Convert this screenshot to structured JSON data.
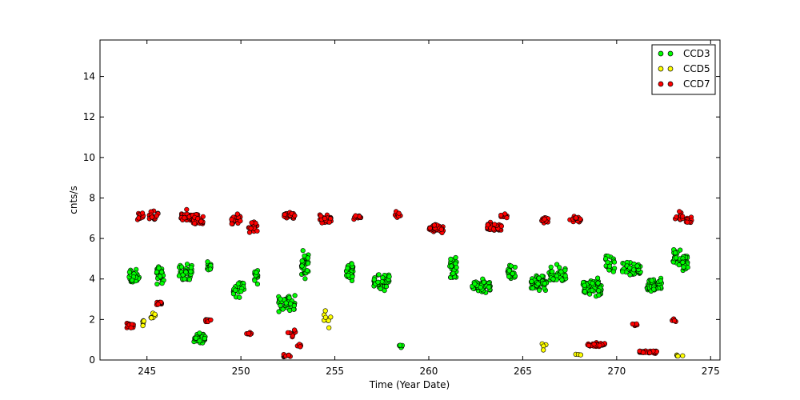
{
  "chart_data": {
    "type": "scatter",
    "title": "",
    "xlabel": "Time (Year Date)",
    "ylabel": "cnts/s",
    "xlim": [
      242.5,
      275.5
    ],
    "ylim": [
      0,
      15.8
    ],
    "xticks": [
      245,
      250,
      255,
      260,
      265,
      270,
      275
    ],
    "yticks": [
      0,
      2,
      4,
      6,
      8,
      10,
      12,
      14
    ],
    "legend_position": "top-right",
    "grid": false,
    "series": [
      {
        "name": "CCD3",
        "color": "#00ff00",
        "clusters": [
          {
            "x": [
              244.0,
              244.6
            ],
            "y": [
              3.6,
              4.6
            ],
            "n": 40
          },
          {
            "x": [
              245.5,
              245.9
            ],
            "y": [
              3.6,
              4.8
            ],
            "n": 30
          },
          {
            "x": [
              246.7,
              247.4
            ],
            "y": [
              3.8,
              4.9
            ],
            "n": 35
          },
          {
            "x": [
              247.5,
              248.1
            ],
            "y": [
              0.7,
              1.4
            ],
            "n": 45
          },
          {
            "x": [
              248.2,
              248.4
            ],
            "y": [
              4.1,
              5.0
            ],
            "n": 15
          },
          {
            "x": [
              249.6,
              250.2
            ],
            "y": [
              3.0,
              4.1
            ],
            "n": 35
          },
          {
            "x": [
              250.7,
              250.9
            ],
            "y": [
              3.6,
              4.8
            ],
            "n": 15
          },
          {
            "x": [
              252.0,
              252.9
            ],
            "y": [
              2.2,
              3.4
            ],
            "n": 45
          },
          {
            "x": [
              253.2,
              253.6
            ],
            "y": [
              3.9,
              5.6
            ],
            "n": 30
          },
          {
            "x": [
              255.6,
              256.0
            ],
            "y": [
              3.8,
              5.0
            ],
            "n": 35
          },
          {
            "x": [
              257.0,
              257.9
            ],
            "y": [
              3.3,
              4.4
            ],
            "n": 45
          },
          {
            "x": [
              258.4,
              258.6
            ],
            "y": [
              0.5,
              0.9
            ],
            "n": 8
          },
          {
            "x": [
              261.1,
              261.5
            ],
            "y": [
              3.9,
              5.2
            ],
            "n": 30
          },
          {
            "x": [
              262.3,
              263.3
            ],
            "y": [
              3.2,
              4.1
            ],
            "n": 55
          },
          {
            "x": [
              264.2,
              264.6
            ],
            "y": [
              3.8,
              4.8
            ],
            "n": 25
          },
          {
            "x": [
              265.4,
              266.3
            ],
            "y": [
              3.3,
              4.3
            ],
            "n": 50
          },
          {
            "x": [
              266.4,
              267.3
            ],
            "y": [
              3.6,
              4.8
            ],
            "n": 40
          },
          {
            "x": [
              268.2,
              269.2
            ],
            "y": [
              2.9,
              4.2
            ],
            "n": 60
          },
          {
            "x": [
              269.4,
              269.9
            ],
            "y": [
              4.0,
              5.3
            ],
            "n": 20
          },
          {
            "x": [
              270.3,
              271.3
            ],
            "y": [
              3.9,
              5.0
            ],
            "n": 50
          },
          {
            "x": [
              271.6,
              272.4
            ],
            "y": [
              3.2,
              4.2
            ],
            "n": 45
          },
          {
            "x": [
              273.0,
              273.4
            ],
            "y": [
              4.3,
              6.0
            ],
            "n": 20
          },
          {
            "x": [
              273.5,
              273.8
            ],
            "y": [
              4.2,
              5.4
            ],
            "n": 25
          }
        ]
      },
      {
        "name": "CCD5",
        "color": "#ffff00",
        "clusters": [
          {
            "x": [
              244.7,
              244.9
            ],
            "y": [
              1.5,
              2.2
            ],
            "n": 6
          },
          {
            "x": [
              245.2,
              245.5
            ],
            "y": [
              1.9,
              2.4
            ],
            "n": 6
          },
          {
            "x": [
              254.4,
              254.8
            ],
            "y": [
              1.4,
              2.6
            ],
            "n": 8
          },
          {
            "x": [
              266.0,
              266.3
            ],
            "y": [
              0.2,
              1.2
            ],
            "n": 4
          },
          {
            "x": [
              267.8,
              268.1
            ],
            "y": [
              0.2,
              0.3
            ],
            "n": 3
          },
          {
            "x": [
              273.2,
              273.6
            ],
            "y": [
              0.1,
              0.3
            ],
            "n": 4
          }
        ]
      },
      {
        "name": "CCD7",
        "color": "#ff0000",
        "clusters": [
          {
            "x": [
              243.9,
              244.3
            ],
            "y": [
              1.5,
              1.9
            ],
            "n": 20
          },
          {
            "x": [
              244.5,
              244.8
            ],
            "y": [
              6.8,
              7.4
            ],
            "n": 15
          },
          {
            "x": [
              245.1,
              245.6
            ],
            "y": [
              6.8,
              7.4
            ],
            "n": 18
          },
          {
            "x": [
              245.5,
              245.8
            ],
            "y": [
              2.6,
              3.0
            ],
            "n": 12
          },
          {
            "x": [
              246.8,
              247.4
            ],
            "y": [
              6.6,
              7.5
            ],
            "n": 30
          },
          {
            "x": [
              247.4,
              248.0
            ],
            "y": [
              6.5,
              7.4
            ],
            "n": 30
          },
          {
            "x": [
              248.1,
              248.4
            ],
            "y": [
              1.8,
              2.2
            ],
            "n": 8
          },
          {
            "x": [
              249.5,
              250.0
            ],
            "y": [
              6.6,
              7.3
            ],
            "n": 20
          },
          {
            "x": [
              250.4,
              250.9
            ],
            "y": [
              6.2,
              6.9
            ],
            "n": 18
          },
          {
            "x": [
              250.3,
              250.6
            ],
            "y": [
              1.2,
              1.4
            ],
            "n": 6
          },
          {
            "x": [
              252.2,
              252.7
            ],
            "y": [
              0.1,
              0.3
            ],
            "n": 10
          },
          {
            "x": [
              252.3,
              252.9
            ],
            "y": [
              6.9,
              7.4
            ],
            "n": 25
          },
          {
            "x": [
              252.5,
              252.9
            ],
            "y": [
              1.0,
              1.6
            ],
            "n": 8
          },
          {
            "x": [
              252.9,
              253.2
            ],
            "y": [
              0.6,
              0.9
            ],
            "n": 8
          },
          {
            "x": [
              254.2,
              254.8
            ],
            "y": [
              6.6,
              7.4
            ],
            "n": 25
          },
          {
            "x": [
              256.0,
              256.4
            ],
            "y": [
              6.8,
              7.3
            ],
            "n": 10
          },
          {
            "x": [
              258.2,
              258.5
            ],
            "y": [
              6.9,
              7.5
            ],
            "n": 10
          },
          {
            "x": [
              260.0,
              260.8
            ],
            "y": [
              6.2,
              6.8
            ],
            "n": 40
          },
          {
            "x": [
              263.1,
              263.9
            ],
            "y": [
              6.2,
              6.9
            ],
            "n": 35
          },
          {
            "x": [
              263.8,
              264.2
            ],
            "y": [
              6.9,
              7.3
            ],
            "n": 10
          },
          {
            "x": [
              266.0,
              266.4
            ],
            "y": [
              6.7,
              7.1
            ],
            "n": 12
          },
          {
            "x": [
              267.5,
              268.1
            ],
            "y": [
              6.7,
              7.2
            ],
            "n": 18
          },
          {
            "x": [
              268.4,
              269.4
            ],
            "y": [
              0.6,
              0.9
            ],
            "n": 30
          },
          {
            "x": [
              270.8,
              271.1
            ],
            "y": [
              1.6,
              1.9
            ],
            "n": 8
          },
          {
            "x": [
              271.2,
              272.2
            ],
            "y": [
              0.3,
              0.5
            ],
            "n": 40
          },
          {
            "x": [
              272.9,
              273.2
            ],
            "y": [
              1.8,
              2.1
            ],
            "n": 6
          },
          {
            "x": [
              273.1,
              273.6
            ],
            "y": [
              6.7,
              7.4
            ],
            "n": 15
          },
          {
            "x": [
              273.7,
              274.0
            ],
            "y": [
              6.7,
              7.1
            ],
            "n": 10
          }
        ]
      }
    ]
  }
}
